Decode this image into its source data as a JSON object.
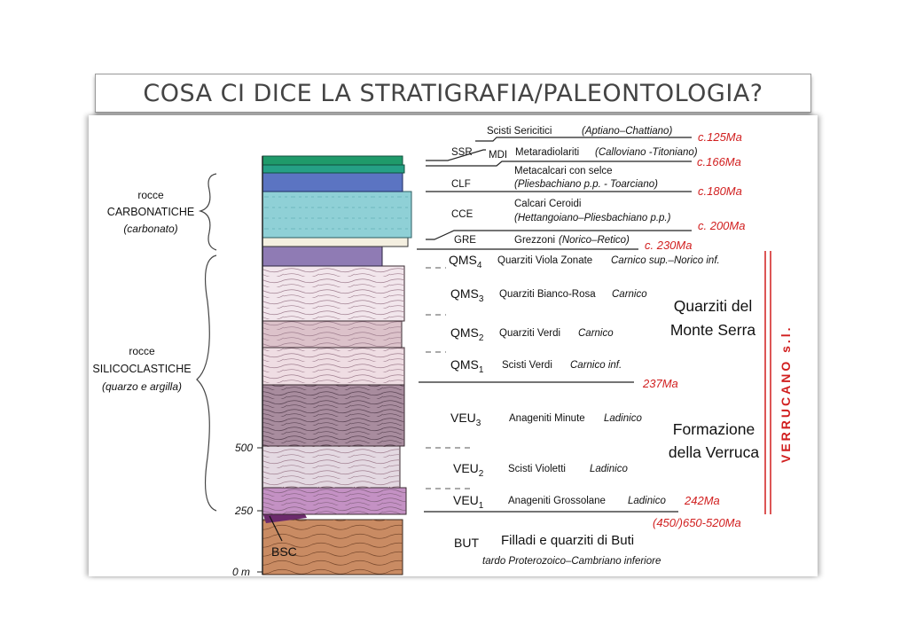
{
  "title": "COSA CI DICE LA STRATIGRAFIA/PALEONTOLOGIA?",
  "groups": {
    "carbonate": {
      "line1": "rocce",
      "line2": "CARBONATICHE",
      "line3": "(carbonato)"
    },
    "siliciclastic": {
      "line1": "rocce",
      "line2": "SILICOCLASTICHE",
      "line3": "(quarzo e argilla)"
    }
  },
  "scale": {
    "s500": "500",
    "s250": "250",
    "s0": "0 m"
  },
  "bsc_label": "BSC",
  "units": {
    "ssr": {
      "code": "SSR",
      "name": "Scisti Sericitici",
      "age": "(Aptiano–Chattiano)"
    },
    "mdi": {
      "code": "MDI",
      "name": "Metaradiolariti",
      "age": "(Calloviano -Titoniano)"
    },
    "clf": {
      "code": "CLF",
      "name": "Metacalcari con selce",
      "age": "(Pliesbachiano p.p. - Toarciano)"
    },
    "cce": {
      "code": "CCE",
      "name": "Calcari Ceroidi",
      "age": "(Hettangoiano–Pliesbachiano p.p.)"
    },
    "gre": {
      "code": "GRE",
      "name": "Grezzoni",
      "age": "(Norico–Retico)"
    },
    "qms4": {
      "code": "QMS",
      "sub": "4",
      "name": "Quarziti Viola Zonate",
      "age": "Carnico sup.–Norico inf."
    },
    "qms3": {
      "code": "QMS",
      "sub": "3",
      "name": "Quarziti Bianco-Rosa",
      "age": "Carnico"
    },
    "qms2": {
      "code": "QMS",
      "sub": "2",
      "name": "Quarziti Verdi",
      "age": "Carnico"
    },
    "qms1": {
      "code": "QMS",
      "sub": "1",
      "name": "Scisti Verdi",
      "age": "Carnico inf."
    },
    "veu3": {
      "code": "VEU",
      "sub": "3",
      "name": "Anageniti Minute",
      "age": "Ladinico"
    },
    "veu2": {
      "code": "VEU",
      "sub": "2",
      "name": "Scisti Violetti",
      "age": "Ladinico"
    },
    "veu1": {
      "code": "VEU",
      "sub": "1",
      "name": "Anageniti Grossolane",
      "age": "Ladinico"
    },
    "but": {
      "code": "BUT",
      "name": "Filladi e quarziti di Buti",
      "age": "tardo Proterozoico–Cambriano inferiore"
    }
  },
  "ages": {
    "a125": "c.125Ma",
    "a166": "c.166Ma",
    "a180": "c.180Ma",
    "a200": "c. 200Ma",
    "a230": "c. 230Ma",
    "a237": "237Ma",
    "a242": "242Ma",
    "a_but": "(450/)650-520Ma"
  },
  "formations": {
    "monte_serra_1": "Quarziti del",
    "monte_serra_2": "Monte Serra",
    "verruca_1": "Formazione",
    "verruca_2": "della Verruca",
    "verrucano": "VERRUCANO s.l."
  },
  "colors": {
    "accent_red": "#d11f1f",
    "ssr_green": "#1f9a6a",
    "clf_blue": "#5b74c2",
    "cce_cyan": "#8fd0d6",
    "qms4_violet": "#8f7bb4",
    "qms_pink": "#efdde3",
    "veu_mauve": "#b29aa6",
    "veu1_magenta": "#c491c4",
    "but_brown": "#c98b63"
  }
}
